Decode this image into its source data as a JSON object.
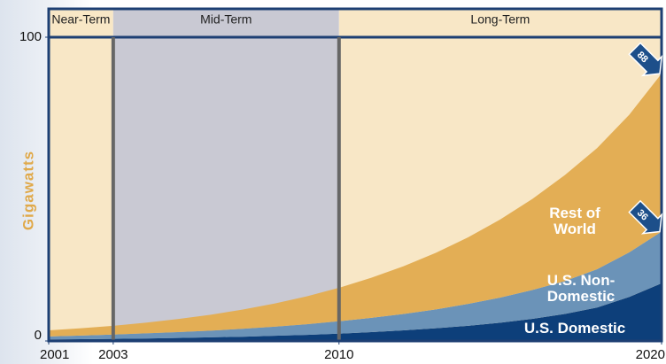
{
  "chart_data": {
    "type": "stacked_area",
    "y_label": "Gigawatts",
    "x": [
      2001,
      2002,
      2003,
      2004,
      2005,
      2006,
      2007,
      2008,
      2009,
      2010,
      2011,
      2012,
      2013,
      2014,
      2015,
      2016,
      2017,
      2018,
      2019,
      2020
    ],
    "xlim": [
      2001,
      2020
    ],
    "xticks": [
      2001,
      2003,
      2010,
      2020
    ],
    "ylim": [
      0,
      100
    ],
    "yticks": [
      0,
      100
    ],
    "phases": [
      {
        "name": "Near-Term",
        "start": 2001,
        "end": 2003,
        "color": "#f8e7c6"
      },
      {
        "name": "Mid-Term",
        "start": 2003,
        "end": 2010,
        "color": "#c9c9d3"
      },
      {
        "name": "Long-Term",
        "start": 2010,
        "end": 2020,
        "color": "#f8e7c6"
      }
    ],
    "series": [
      {
        "name": "U.S. Domestic",
        "color": "#0d3f7a",
        "values": [
          0.5,
          0.6,
          0.7,
          0.8,
          1.0,
          1.2,
          1.4,
          1.7,
          2.0,
          2.4,
          2.9,
          3.5,
          4.2,
          5.0,
          6.0,
          7.3,
          8.9,
          11.0,
          14.5,
          19
        ]
      },
      {
        "name": "U.S. Non-Domestic",
        "color": "#6b93b8",
        "values": [
          1.0,
          1.2,
          1.4,
          1.7,
          1.9,
          2.2,
          2.6,
          3.0,
          3.5,
          4.1,
          4.7,
          5.4,
          6.2,
          7.2,
          8.3,
          9.5,
          10.8,
          12.6,
          14.7,
          17
        ]
      },
      {
        "name": "Rest of World",
        "color": "#e3ae55",
        "values": [
          2.0,
          2.4,
          2.9,
          3.5,
          4.3,
          5.2,
          6.3,
          7.6,
          9.2,
          11.0,
          13.2,
          15.7,
          18.6,
          21.9,
          25.7,
          30.0,
          34.9,
          39.9,
          45.3,
          52
        ]
      }
    ],
    "end_labels": [
      88,
      36
    ]
  }
}
